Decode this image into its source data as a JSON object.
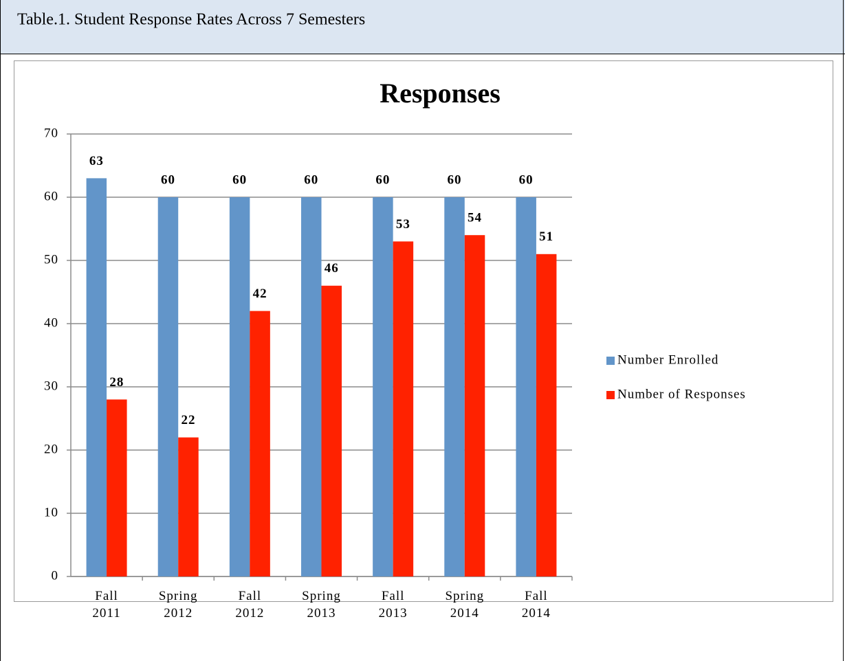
{
  "caption": "Table.1. Student Response Rates Across 7 Semesters",
  "chart_data": {
    "type": "bar",
    "title": "Responses",
    "categories": [
      "Fall 2011",
      "Spring 2012",
      "Fall 2012",
      "Spring 2013",
      "Fall 2013",
      "Spring 2014",
      "Fall 2014"
    ],
    "series": [
      {
        "name": "Number Enrolled",
        "color": "#6295c9",
        "values": [
          63,
          60,
          60,
          60,
          60,
          60,
          60
        ]
      },
      {
        "name": "Number of Responses",
        "color": "#ff2200",
        "values": [
          28,
          22,
          42,
          46,
          53,
          54,
          51
        ]
      }
    ],
    "ylim": [
      0,
      70
    ],
    "yticks": [
      0,
      10,
      20,
      30,
      40,
      50,
      60,
      70
    ],
    "grid": true,
    "legend": "right"
  }
}
